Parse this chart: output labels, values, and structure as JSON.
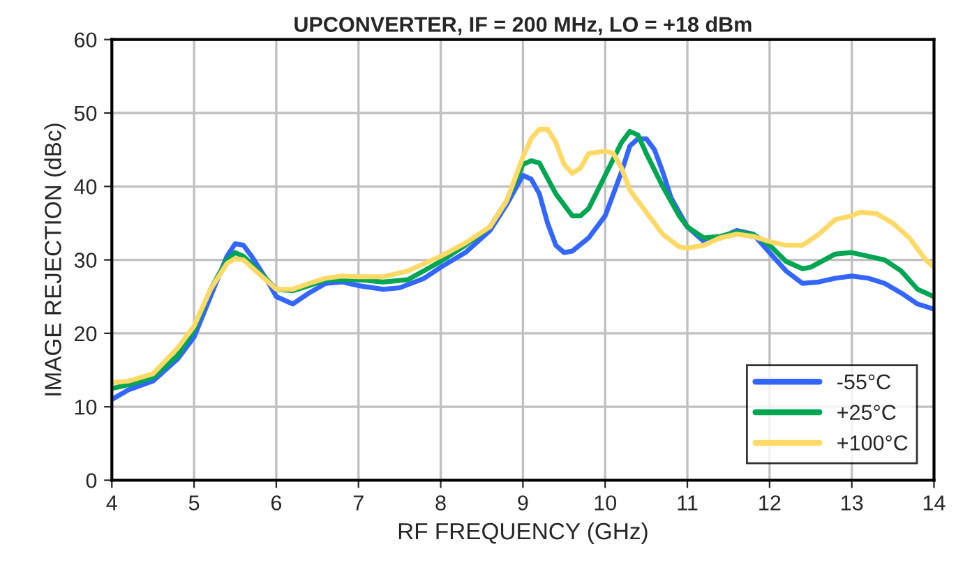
{
  "chart_data": {
    "type": "line",
    "title": "UPCONVERTER, IF = 200 MHz, LO = +18 dBm",
    "xlabel": "RF FREQUENCY (GHz)",
    "ylabel": "IMAGE REJECTION (dBc)",
    "xlim": [
      4,
      14
    ],
    "xticks": [
      4,
      5,
      6,
      7,
      8,
      9,
      10,
      11,
      12,
      13,
      14
    ],
    "ylim": [
      0,
      60
    ],
    "yticks": [
      0,
      10,
      20,
      30,
      40,
      50,
      60
    ],
    "grid": true,
    "legend": "bottom right",
    "marker": "none",
    "line_style": "solid",
    "series": [
      {
        "name": "-55°C",
        "color": "#3366ff",
        "x": [
          4,
          4.2,
          4.5,
          4.8,
          5,
          5.2,
          5.4,
          5.5,
          5.6,
          5.7,
          5.9,
          6,
          6.2,
          6.4,
          6.6,
          6.8,
          7,
          7.3,
          7.5,
          7.8,
          8,
          8.3,
          8.6,
          8.8,
          9,
          9.1,
          9.2,
          9.3,
          9.4,
          9.5,
          9.6,
          9.8,
          10,
          10.2,
          10.3,
          10.4,
          10.5,
          10.6,
          10.7,
          10.8,
          11,
          11.2,
          11.4,
          11.6,
          11.8,
          12,
          12.2,
          12.4,
          12.6,
          12.8,
          13,
          13.2,
          13.4,
          13.6,
          13.8,
          14
        ],
        "values": [
          11,
          12.3,
          13.5,
          16.5,
          19.5,
          25,
          30.5,
          32.2,
          32,
          30.5,
          27,
          25,
          24,
          25.5,
          26.8,
          27,
          26.5,
          26,
          26.2,
          27.5,
          29,
          31,
          34,
          37.5,
          41.5,
          41,
          39,
          35,
          32,
          31,
          31.2,
          33,
          36,
          42,
          45.5,
          46.5,
          46.5,
          45,
          42,
          38.5,
          34.5,
          32.5,
          33,
          34,
          33.5,
          31,
          28.5,
          26.8,
          27,
          27.5,
          27.8,
          27.5,
          26.8,
          25.5,
          24,
          23.3
        ]
      },
      {
        "name": "+25°C",
        "color": "#00a651",
        "x": [
          4,
          4.2,
          4.5,
          4.8,
          5,
          5.2,
          5.4,
          5.5,
          5.6,
          5.8,
          6,
          6.2,
          6.4,
          6.6,
          6.8,
          7,
          7.3,
          7.6,
          8,
          8.3,
          8.6,
          8.8,
          9,
          9.1,
          9.2,
          9.4,
          9.6,
          9.7,
          9.8,
          10,
          10.2,
          10.3,
          10.4,
          10.5,
          10.7,
          10.9,
          11,
          11.2,
          11.4,
          11.6,
          11.8,
          12,
          12.2,
          12.4,
          12.5,
          12.8,
          13,
          13.2,
          13.4,
          13.6,
          13.8,
          14
        ],
        "values": [
          12.5,
          13,
          14,
          17,
          20.5,
          26,
          30,
          31,
          30.5,
          28.3,
          26,
          25.8,
          26.5,
          27.3,
          27.3,
          27.3,
          27,
          27.3,
          29.8,
          32,
          34.5,
          38,
          43,
          43.5,
          43.2,
          39,
          36,
          36,
          37,
          41.5,
          46,
          47.5,
          47,
          44.5,
          40,
          36,
          34.5,
          33,
          33.2,
          33.8,
          33.5,
          32,
          29.8,
          28.8,
          29,
          30.8,
          31,
          30.5,
          30,
          28.5,
          26,
          25
        ]
      },
      {
        "name": "+100°C",
        "color": "#ffd966",
        "x": [
          4,
          4.2,
          4.5,
          4.8,
          5,
          5.2,
          5.4,
          5.5,
          5.6,
          5.8,
          6,
          6.2,
          6.4,
          6.6,
          6.8,
          7,
          7.3,
          7.6,
          8,
          8.3,
          8.6,
          8.8,
          9,
          9.1,
          9.2,
          9.3,
          9.4,
          9.5,
          9.6,
          9.7,
          9.8,
          10,
          10.1,
          10.2,
          10.3,
          10.5,
          10.7,
          10.9,
          11,
          11.2,
          11.4,
          11.6,
          11.8,
          12,
          12.2,
          12.4,
          12.6,
          12.8,
          13,
          13.1,
          13.3,
          13.5,
          13.7,
          13.9,
          14
        ],
        "values": [
          13.3,
          13.5,
          14.5,
          18,
          21,
          26,
          29.5,
          30.2,
          30,
          28,
          26,
          26,
          26.8,
          27.5,
          27.8,
          27.7,
          27.7,
          28.5,
          30.5,
          32.3,
          34.5,
          38,
          44,
          46.5,
          47.8,
          47.8,
          46,
          43,
          41.8,
          42.5,
          44.5,
          44.8,
          44.5,
          42.5,
          39.5,
          36.5,
          33.5,
          31.8,
          31.6,
          32,
          33,
          33.5,
          33.2,
          32.5,
          32,
          32,
          33.5,
          35.5,
          36,
          36.5,
          36.3,
          35,
          33,
          30,
          29
        ]
      }
    ]
  }
}
